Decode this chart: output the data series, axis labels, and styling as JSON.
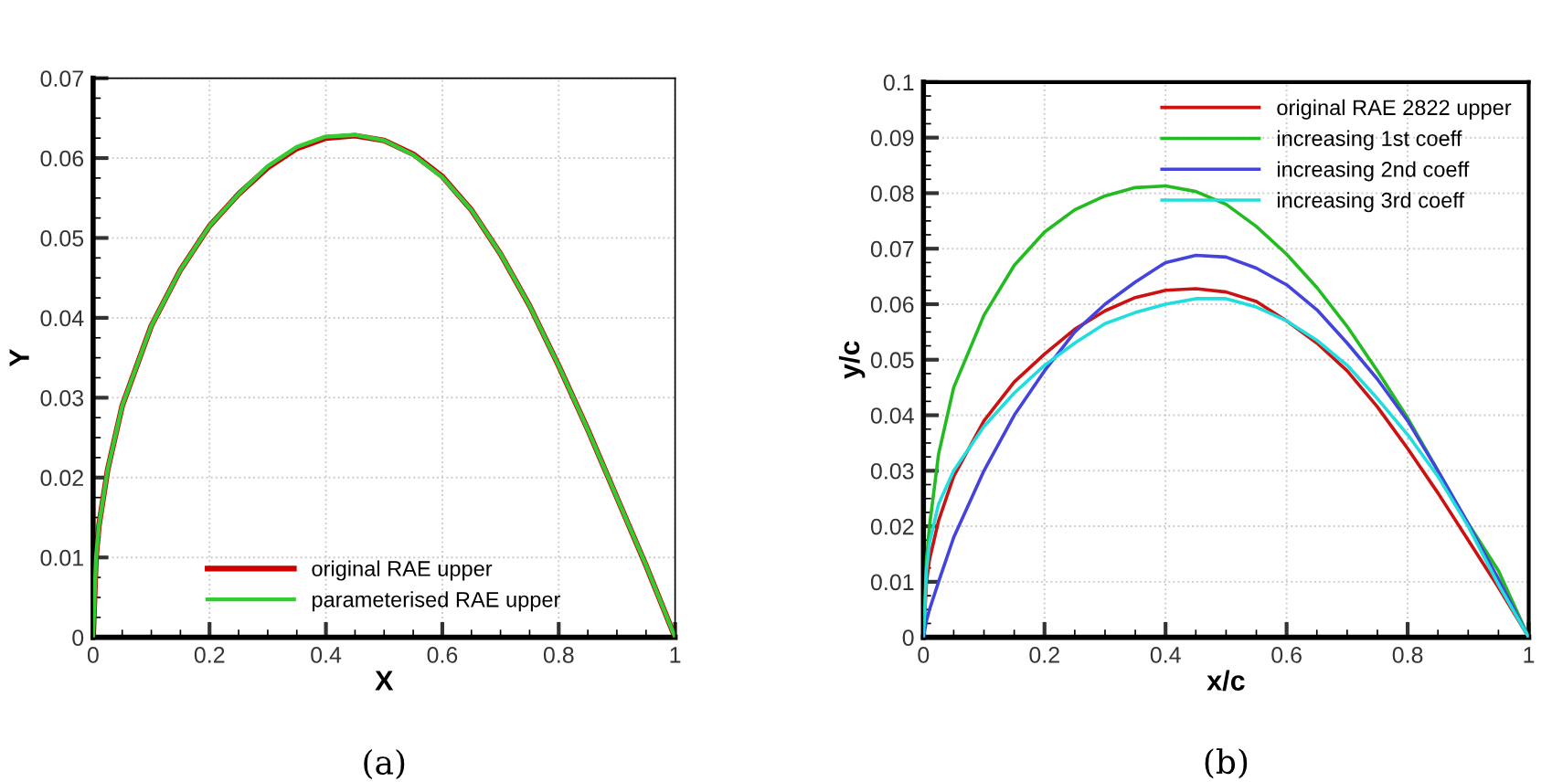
{
  "chart_data": [
    {
      "type": "line",
      "xlabel": "X",
      "ylabel": "Y",
      "xlim": [
        0,
        1
      ],
      "ylim": [
        0,
        0.07
      ],
      "xticks": [
        0,
        0.2,
        0.4,
        0.6,
        0.8,
        1
      ],
      "yticks": [
        0,
        0.01,
        0.02,
        0.03,
        0.04,
        0.05,
        0.06,
        0.07
      ],
      "grid": true,
      "legend": "bottom",
      "annotations": [
        "(a)"
      ],
      "x": [
        0,
        0.005,
        0.01,
        0.025,
        0.05,
        0.1,
        0.15,
        0.2,
        0.25,
        0.3,
        0.35,
        0.4,
        0.45,
        0.5,
        0.55,
        0.6,
        0.65,
        0.7,
        0.75,
        0.8,
        0.85,
        0.9,
        0.95,
        1.0
      ],
      "series": [
        {
          "name": "original RAE upper",
          "color": "#cc0000",
          "values": [
            0,
            0.01,
            0.014,
            0.021,
            0.029,
            0.039,
            0.046,
            0.0515,
            0.0555,
            0.0588,
            0.0612,
            0.0625,
            0.0628,
            0.0622,
            0.0605,
            0.0577,
            0.0535,
            0.048,
            0.0415,
            0.034,
            0.026,
            0.0175,
            0.009,
            0
          ]
        },
        {
          "name": "parameterised RAE upper",
          "color": "#33cc33",
          "values": [
            0,
            0.01,
            0.014,
            0.021,
            0.029,
            0.039,
            0.046,
            0.0515,
            0.0555,
            0.059,
            0.0614,
            0.0627,
            0.0629,
            0.0622,
            0.0604,
            0.0576,
            0.0535,
            0.048,
            0.0415,
            0.034,
            0.026,
            0.0175,
            0.009,
            0
          ]
        }
      ]
    },
    {
      "type": "line",
      "xlabel": "x/c",
      "ylabel": "y/c",
      "xlim": [
        0,
        1
      ],
      "ylim": [
        0,
        0.1
      ],
      "xticks": [
        0,
        0.2,
        0.4,
        0.6,
        0.8,
        1
      ],
      "yticks": [
        0,
        0.01,
        0.02,
        0.03,
        0.04,
        0.05,
        0.06,
        0.07,
        0.08,
        0.09,
        0.1
      ],
      "grid": true,
      "legend": "top right",
      "annotations": [
        "(b)"
      ],
      "x": [
        0,
        0.005,
        0.01,
        0.025,
        0.05,
        0.1,
        0.15,
        0.2,
        0.25,
        0.3,
        0.35,
        0.4,
        0.45,
        0.5,
        0.55,
        0.6,
        0.65,
        0.7,
        0.75,
        0.8,
        0.85,
        0.9,
        0.95,
        1.0
      ],
      "series": [
        {
          "name": "original RAE 2822 upper",
          "color": "#cc1111",
          "values": [
            0,
            0.01,
            0.014,
            0.021,
            0.029,
            0.039,
            0.046,
            0.051,
            0.0555,
            0.0588,
            0.0612,
            0.0625,
            0.0628,
            0.0622,
            0.0605,
            0.057,
            0.053,
            0.048,
            0.0415,
            0.034,
            0.026,
            0.0175,
            0.009,
            0
          ]
        },
        {
          "name": "increasing 1st coeff",
          "color": "#22bb22",
          "values": [
            0,
            0.014,
            0.02,
            0.033,
            0.045,
            0.058,
            0.067,
            0.073,
            0.077,
            0.0795,
            0.081,
            0.0813,
            0.0803,
            0.078,
            0.074,
            0.069,
            0.063,
            0.056,
            0.048,
            0.0395,
            0.03,
            0.0205,
            0.012,
            0
          ]
        },
        {
          "name": "increasing 2nd coeff",
          "color": "#4444dd",
          "values": [
            0,
            0.003,
            0.005,
            0.01,
            0.018,
            0.03,
            0.04,
            0.048,
            0.055,
            0.06,
            0.064,
            0.0675,
            0.0688,
            0.0685,
            0.0665,
            0.0635,
            0.059,
            0.053,
            0.0465,
            0.039,
            0.03,
            0.0205,
            0.0105,
            0
          ]
        },
        {
          "name": "increasing 3rd coeff",
          "color": "#22dddd",
          "values": [
            0,
            0.012,
            0.017,
            0.024,
            0.03,
            0.038,
            0.044,
            0.049,
            0.053,
            0.0565,
            0.0585,
            0.06,
            0.061,
            0.061,
            0.0595,
            0.057,
            0.0535,
            0.049,
            0.043,
            0.0365,
            0.029,
            0.02,
            0.0095,
            0
          ]
        }
      ]
    }
  ]
}
